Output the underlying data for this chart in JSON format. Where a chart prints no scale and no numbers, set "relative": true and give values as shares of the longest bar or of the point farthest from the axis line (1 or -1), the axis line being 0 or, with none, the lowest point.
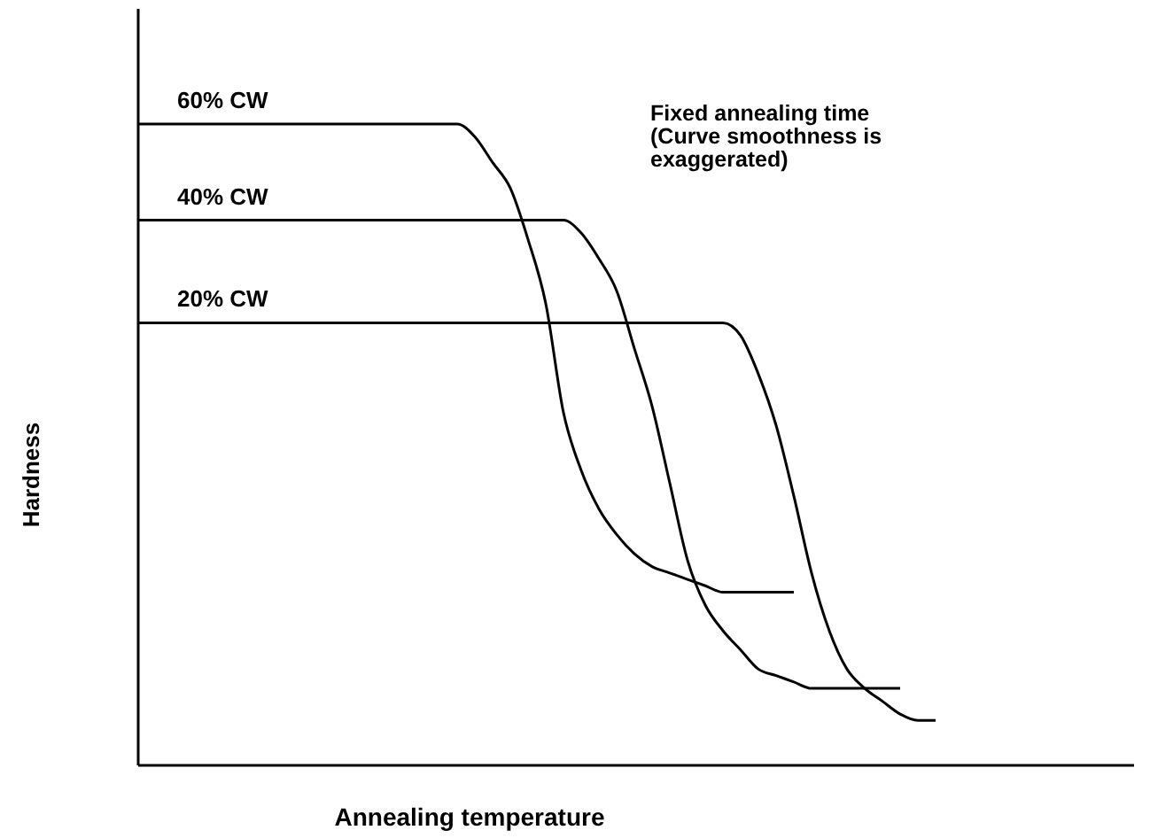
{
  "chart_data": {
    "type": "line",
    "relative": true,
    "xlabel": "Annealing temperature",
    "ylabel": "Hardness",
    "annotations": [
      "Fixed annealing time\n(Curve smoothness is\nexaggerated)"
    ],
    "categories": [
      null,
      null,
      null,
      null,
      null,
      null,
      null,
      null,
      null,
      null,
      null,
      null,
      null,
      null,
      null,
      null,
      null,
      null,
      null,
      null,
      null,
      null,
      null,
      null,
      null,
      null,
      null,
      null,
      null,
      null,
      null,
      null,
      null,
      null,
      null,
      null,
      null,
      null,
      null,
      null,
      null,
      null,
      null,
      null,
      null,
      null,
      null,
      null,
      null,
      null,
      null,
      null,
      null,
      null,
      null,
      null,
      null
    ],
    "marker": "none",
    "line_style": "solid",
    "series": [
      {
        "name": "60% CW",
        "color": "#000000",
        "values": [
          1,
          1,
          1,
          1,
          1,
          1,
          1,
          1,
          1,
          1,
          1,
          1,
          1,
          1,
          1,
          1,
          1,
          1,
          1,
          0.98,
          0.94,
          0.9,
          0.82,
          0.72,
          0.55,
          0.46,
          0.4,
          0.36,
          0.33,
          0.31,
          0.3,
          0.29,
          0.28,
          0.27,
          0.27,
          0.27,
          0.27,
          0.27,
          null,
          null,
          null,
          null,
          null,
          null,
          null,
          null,
          null,
          null,
          null,
          null,
          null,
          null,
          null,
          null,
          null,
          null,
          null
        ]
      },
      {
        "name": "40% CW",
        "color": "#000000",
        "values": [
          0.85,
          0.85,
          0.85,
          0.85,
          0.85,
          0.85,
          0.85,
          0.85,
          0.85,
          0.85,
          0.85,
          0.85,
          0.85,
          0.85,
          0.85,
          0.85,
          0.85,
          0.85,
          0.85,
          0.85,
          0.85,
          0.85,
          0.85,
          0.85,
          0.85,
          0.83,
          0.79,
          0.74,
          0.65,
          0.56,
          0.44,
          0.32,
          0.25,
          0.21,
          0.18,
          0.15,
          0.14,
          0.13,
          0.12,
          0.12,
          0.12,
          0.12,
          0.12,
          0.12,
          null,
          null,
          null,
          null,
          null,
          null,
          null,
          null,
          null,
          null,
          null,
          null,
          null
        ]
      },
      {
        "name": "20% CW",
        "color": "#000000",
        "values": [
          0.69,
          0.69,
          0.69,
          0.69,
          0.69,
          0.69,
          0.69,
          0.69,
          0.69,
          0.69,
          0.69,
          0.69,
          0.69,
          0.69,
          0.69,
          0.69,
          0.69,
          0.69,
          0.69,
          0.69,
          0.69,
          0.69,
          0.69,
          0.69,
          0.69,
          0.69,
          0.69,
          0.69,
          0.69,
          0.69,
          0.69,
          0.69,
          0.69,
          0.69,
          0.67,
          0.61,
          0.53,
          0.42,
          0.3,
          0.21,
          0.15,
          0.12,
          0.1,
          0.08,
          0.07,
          0.07,
          null,
          null,
          null,
          null,
          null,
          null,
          null,
          null,
          null,
          null,
          null
        ]
      }
    ]
  }
}
